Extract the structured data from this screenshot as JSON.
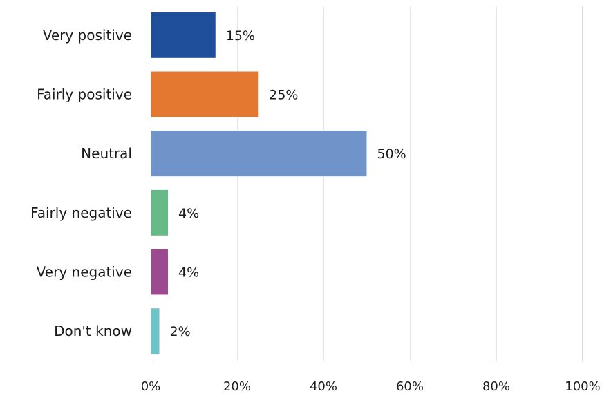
{
  "chart_data": {
    "type": "bar",
    "orientation": "horizontal",
    "categories": [
      "Very positive",
      "Fairly positive",
      "Neutral",
      "Fairly negative",
      "Very negative",
      "Don't know"
    ],
    "values": [
      15,
      25,
      50,
      4,
      4,
      2
    ],
    "value_labels": [
      "15%",
      "25%",
      "50%",
      "4%",
      "4%",
      "2%"
    ],
    "colors": [
      "#1f4e9a",
      "#e57830",
      "#7093c9",
      "#67b987",
      "#9b4a90",
      "#6ec4c6"
    ],
    "xlim": [
      0,
      100
    ],
    "xticks": [
      0,
      20,
      40,
      60,
      80,
      100
    ],
    "xtick_labels": [
      "0%",
      "20%",
      "40%",
      "60%",
      "80%",
      "100%"
    ],
    "grid": "vertical gridlines",
    "title": "",
    "xlabel": "",
    "ylabel": ""
  }
}
